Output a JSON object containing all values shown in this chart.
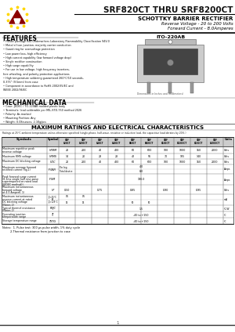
{
  "title": "SRF820CT THRU SRF8200CT",
  "subtitle": "SCHOTTKY BARRIER RECTIFIER",
  "subtitle2": "Reverse Voltage - 20 to 200 Volts",
  "subtitle3": "Forward Current - 8.0Amperes",
  "package": "ITO-220AB",
  "features_title": "FEATURES",
  "mech_title": "MECHANICAL DATA",
  "ratings_title": "MAXIMUM RATINGS AND ELECTRICAL CHARACTERISTICS",
  "ratings_note": "Ratings at 25°C ambient temperature unless otherwise specified (single-phase, half-wave, resistive or inductive load, the capacitive load derates by 20%.)",
  "features": [
    "Plastic package has Underwriters Laboratory Flammability Classification 94V-0",
    "Metal silicon junction, majority carrier conduction",
    "Guard ring for overvoltage protection",
    "Low power loss, high efficiency",
    "High current capability (low forward voltage drop)",
    "Single rectifier construction",
    "High surge capability",
    "For use in low voltage, high frequency inverters,",
    "  free wheeling, and polarity protection applications",
    "High temperature soldering guaranteed 260°C/10 seconds,",
    "  0.375” (9.5mm) from case",
    "Component in accordance to RoHS 2002/95/EC and",
    "  WEEE 2002/96/EC"
  ],
  "mech": [
    "Case: JEDEC / TO-220AB molded plastic body",
    "Terminals: lead solderable per MIL-STD-750 method 2026",
    "Polarity: As marked",
    "Mounting Position: Any",
    "Weight: 0.08ounces, 2.1Kg/pcs"
  ],
  "hdr_labels": [
    "SRF\n820CT",
    "SRF\n8200CT",
    "SRF\n840CT",
    "SRF\n8400CT",
    "SRF\n860CT",
    "SRF\n8600CT",
    "SRF\n8100CT",
    "SRF\n81000CT",
    "SRF\n8150CT",
    "SRF\n82000CT"
  ],
  "bg_color": "#ffffff",
  "logo_star": "#FFD700",
  "logo_body": "#8B0000",
  "dim_note": "Dimensions in Inches and (millimeters)"
}
